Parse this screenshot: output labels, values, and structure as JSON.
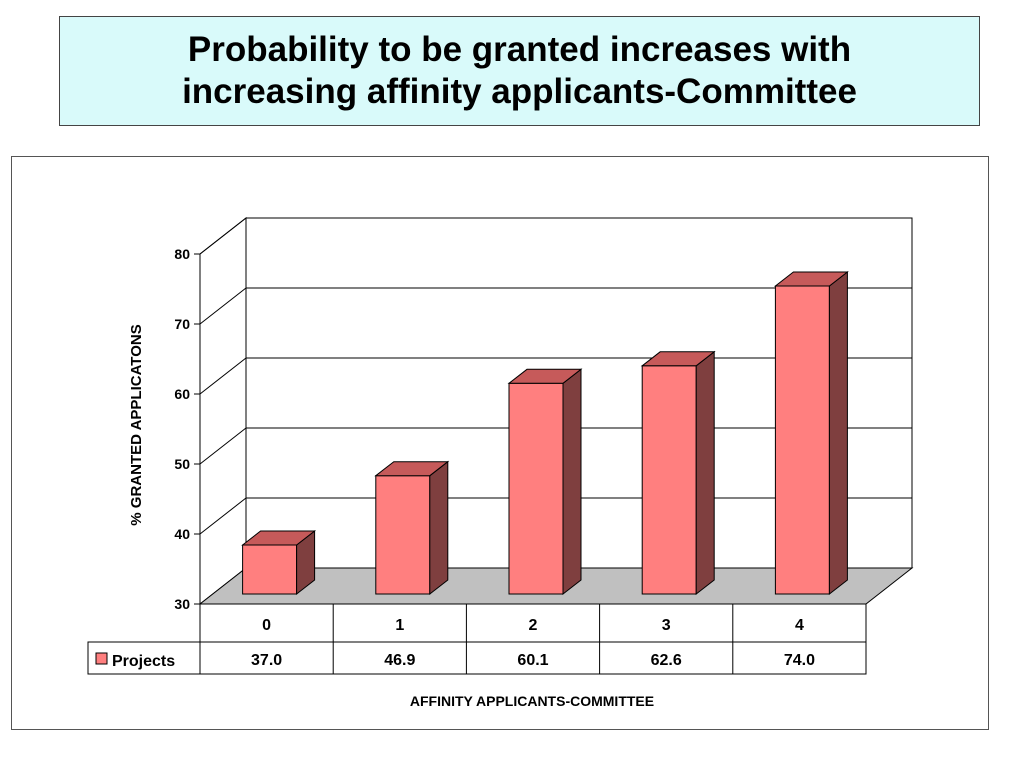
{
  "title": {
    "line1": "Probability to be granted increases with",
    "line2": "increasing affinity applicants-Committee"
  },
  "colors": {
    "title_bg": "#d9fafa",
    "bar_front": "#ff7f7f",
    "bar_top": "#c65a5a",
    "bar_side": "#7f3f3f",
    "floor": "#c0c0c0"
  },
  "chart_data": {
    "type": "bar",
    "categories": [
      "0",
      "1",
      "2",
      "3",
      "4"
    ],
    "series": [
      {
        "name": "Projects",
        "values": [
          37.0,
          46.9,
          60.1,
          62.6,
          74.0
        ]
      }
    ],
    "value_labels": [
      "37.0",
      "46.9",
      "60.1",
      "62.6",
      "74.0"
    ],
    "xlabel": "AFFINITY APPLICANTS-COMMITTEE",
    "ylabel": "% GRANTED APPLICATONS",
    "ylim": [
      30,
      80
    ],
    "yticks": [
      30,
      40,
      50,
      60,
      70,
      80
    ],
    "grid": true,
    "data_table": true,
    "style": "3d"
  }
}
